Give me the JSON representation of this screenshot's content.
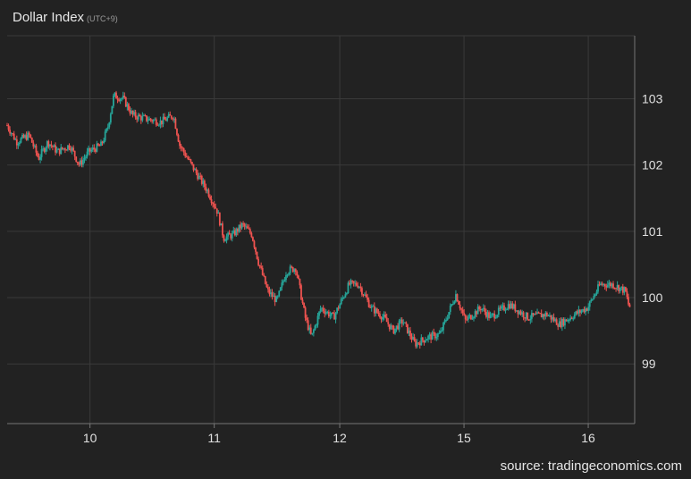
{
  "header": {
    "title": "Dollar Index",
    "timezone": "(UTC+9)"
  },
  "source": "source: tradingeconomics.com",
  "colors": {
    "background": "#222222",
    "grid": "#3a3a3a",
    "up": "#26a69a",
    "down": "#ef5350",
    "text": "#e0e0e0"
  },
  "chart_data": {
    "type": "candlestick",
    "title": "Dollar Index",
    "ylim": [
      98.1,
      103.95
    ],
    "yticks": [
      99,
      100,
      101,
      102,
      103
    ],
    "grid": true,
    "sessions": [
      "10",
      "11",
      "12",
      "15",
      "16"
    ],
    "x_ticks": [
      {
        "label": "10",
        "pos": 0.132
      },
      {
        "label": "11",
        "pos": 0.33
      },
      {
        "label": "12",
        "pos": 0.53
      },
      {
        "label": "15",
        "pos": 0.728
      },
      {
        "label": "16",
        "pos": 0.926
      }
    ],
    "anchors": [
      [
        0.0,
        102.6
      ],
      [
        0.015,
        102.35
      ],
      [
        0.035,
        102.45
      ],
      [
        0.05,
        102.1
      ],
      [
        0.065,
        102.35
      ],
      [
        0.08,
        102.2
      ],
      [
        0.1,
        102.3
      ],
      [
        0.115,
        102.0
      ],
      [
        0.13,
        102.2
      ],
      [
        0.15,
        102.3
      ],
      [
        0.16,
        102.55
      ],
      [
        0.17,
        103.05
      ],
      [
        0.185,
        103.0
      ],
      [
        0.2,
        102.75
      ],
      [
        0.22,
        102.7
      ],
      [
        0.245,
        102.65
      ],
      [
        0.265,
        102.75
      ],
      [
        0.275,
        102.3
      ],
      [
        0.3,
        101.9
      ],
      [
        0.32,
        101.6
      ],
      [
        0.335,
        101.3
      ],
      [
        0.345,
        100.9
      ],
      [
        0.36,
        100.95
      ],
      [
        0.375,
        101.1
      ],
      [
        0.39,
        100.95
      ],
      [
        0.4,
        100.55
      ],
      [
        0.415,
        100.1
      ],
      [
        0.43,
        99.95
      ],
      [
        0.445,
        100.4
      ],
      [
        0.46,
        100.45
      ],
      [
        0.475,
        99.7
      ],
      [
        0.485,
        99.4
      ],
      [
        0.5,
        99.85
      ],
      [
        0.52,
        99.7
      ],
      [
        0.545,
        100.2
      ],
      [
        0.56,
        100.2
      ],
      [
        0.58,
        99.85
      ],
      [
        0.6,
        99.7
      ],
      [
        0.615,
        99.5
      ],
      [
        0.63,
        99.65
      ],
      [
        0.65,
        99.3
      ],
      [
        0.67,
        99.4
      ],
      [
        0.69,
        99.45
      ],
      [
        0.715,
        100.05
      ],
      [
        0.73,
        99.65
      ],
      [
        0.755,
        99.85
      ],
      [
        0.77,
        99.7
      ],
      [
        0.8,
        99.9
      ],
      [
        0.83,
        99.7
      ],
      [
        0.86,
        99.75
      ],
      [
        0.88,
        99.6
      ],
      [
        0.905,
        99.75
      ],
      [
        0.925,
        99.85
      ],
      [
        0.945,
        100.2
      ],
      [
        0.965,
        100.2
      ],
      [
        0.985,
        100.1
      ],
      [
        0.99,
        99.9
      ],
      [
        0.993,
        99.85
      ]
    ]
  }
}
